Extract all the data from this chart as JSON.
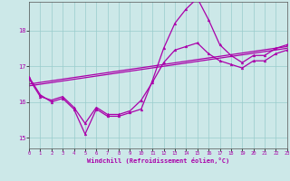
{
  "xlabel": "Windchill (Refroidissement éolien,°C)",
  "xlim": [
    0,
    23
  ],
  "ylim": [
    14.7,
    18.8
  ],
  "yticks": [
    15,
    16,
    17,
    18
  ],
  "xticks": [
    0,
    1,
    2,
    3,
    4,
    5,
    6,
    7,
    8,
    9,
    10,
    11,
    12,
    13,
    14,
    15,
    16,
    17,
    18,
    19,
    20,
    21,
    22,
    23
  ],
  "bg_color": "#cce8e8",
  "line_color": "#aa00aa",
  "grid_color": "#99cccc",
  "line1_x": [
    0,
    1,
    2,
    3,
    4,
    5,
    6,
    7,
    8,
    9,
    10,
    11,
    12,
    13,
    14,
    15,
    16,
    17,
    18,
    19,
    20,
    21,
    22,
    23
  ],
  "line1_y": [
    16.7,
    16.2,
    16.0,
    16.1,
    15.8,
    15.1,
    15.8,
    15.6,
    15.6,
    15.7,
    15.8,
    16.6,
    17.5,
    18.2,
    18.6,
    18.9,
    18.3,
    17.6,
    17.3,
    17.1,
    17.3,
    17.3,
    17.5,
    17.6
  ],
  "line2_x": [
    0,
    1,
    2,
    3,
    4,
    5,
    6,
    7,
    8,
    9,
    10,
    11,
    12,
    13,
    14,
    15,
    16,
    17,
    18,
    19,
    20,
    21,
    22,
    23
  ],
  "line2_y": [
    16.65,
    16.15,
    16.05,
    16.15,
    15.85,
    15.4,
    15.85,
    15.65,
    15.65,
    15.75,
    16.05,
    16.55,
    17.1,
    17.45,
    17.55,
    17.65,
    17.35,
    17.15,
    17.05,
    16.95,
    17.15,
    17.15,
    17.35,
    17.45
  ],
  "line3_x": [
    0,
    23
  ],
  "line3_y": [
    16.45,
    17.5
  ],
  "line4_x": [
    0,
    23
  ],
  "line4_y": [
    16.5,
    17.55
  ]
}
